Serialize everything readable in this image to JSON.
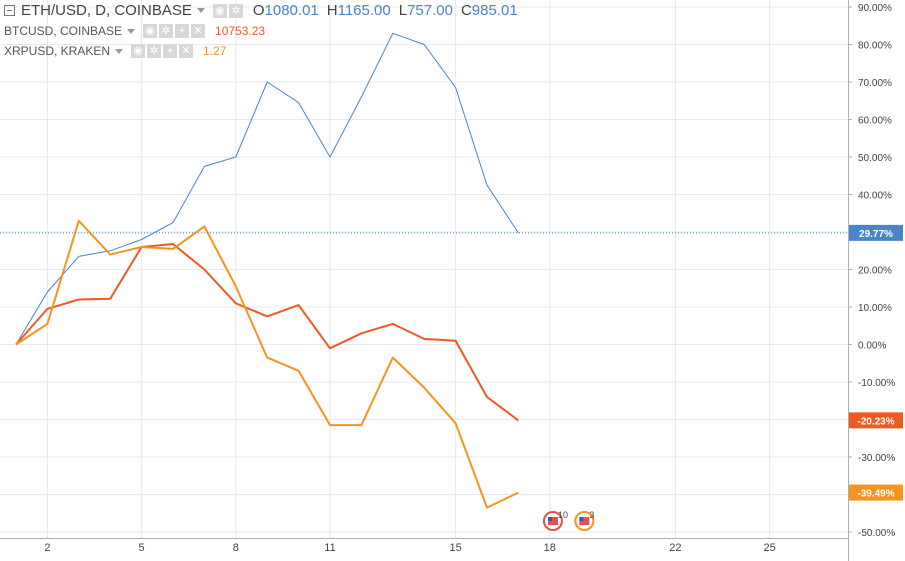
{
  "legend": {
    "main": {
      "symbol": "ETH/USD, D, COINBASE",
      "open_key": "O",
      "open": "1080.01",
      "high_key": "H",
      "high": "1165.00",
      "low_key": "L",
      "low": "757.00",
      "close_key": "C",
      "close": "985.01"
    },
    "compare1": {
      "symbol": "BTCUSD, COINBASE",
      "value": "10753.23",
      "color": "#f05a22"
    },
    "compare2": {
      "symbol": "XRPUSD, KRAKEN",
      "value": "1.27",
      "color": "#f7931e"
    }
  },
  "price_scale": {
    "labels": [
      "90.00%",
      "80.00%",
      "70.00%",
      "60.00%",
      "50.00%",
      "40.00%",
      "30.00%",
      "20.00%",
      "10.00%",
      "0.00%",
      "-10.00%",
      "-20.00%",
      "-30.00%",
      "-40.00%",
      "-50.00%"
    ],
    "values": [
      90,
      80,
      70,
      60,
      50,
      40,
      30,
      20,
      10,
      0,
      -10,
      -20,
      -30,
      -40,
      -50
    ]
  },
  "time_scale": {
    "labels": [
      "2",
      "5",
      "8",
      "11",
      "15",
      "18",
      "22",
      "25"
    ],
    "positions": [
      2,
      5,
      8,
      11,
      15,
      18,
      22,
      25
    ]
  },
  "events": [
    {
      "count": "10",
      "x": 18.1
    },
    {
      "count": "3",
      "x": 19.1
    }
  ],
  "chart_data": {
    "type": "line",
    "ylim": [
      -50,
      90
    ],
    "series": [
      {
        "name": "ETH/USD",
        "color": "#4a84c9",
        "last_label": "29.77%",
        "last": 29.77,
        "x": [
          1,
          2,
          3,
          4,
          5,
          6,
          7,
          8,
          9,
          10,
          11,
          12,
          13,
          14,
          15,
          16,
          17
        ],
        "values": [
          0,
          14,
          23.5,
          25,
          28,
          32.5,
          47.5,
          50,
          70,
          64.5,
          50,
          66,
          83,
          80,
          68.5,
          42.5,
          29.77
        ]
      },
      {
        "name": "BTCUSD",
        "color": "#f05a22",
        "last_label": "-20.23%",
        "last": -20.23,
        "x": [
          1,
          2,
          3,
          4,
          5,
          6,
          7,
          8,
          9,
          10,
          11,
          12,
          13,
          14,
          15,
          16,
          17
        ],
        "values": [
          0,
          9.5,
          12,
          12.2,
          26,
          26.8,
          20,
          11,
          7.5,
          10.5,
          -1,
          3,
          5.5,
          1.5,
          1,
          -14,
          -20.23
        ]
      },
      {
        "name": "XRPUSD",
        "color": "#f7931e",
        "last_label": "-39.49%",
        "last": -39.49,
        "x": [
          1,
          2,
          3,
          4,
          5,
          6,
          7,
          8,
          9,
          10,
          11,
          12,
          13,
          14,
          15,
          16,
          17
        ],
        "values": [
          0,
          5.5,
          33,
          24,
          26,
          25.5,
          31.5,
          15.5,
          -3.5,
          -7,
          -21.5,
          -21.5,
          -3.5,
          -11.5,
          -21,
          -43.5,
          -39.49
        ]
      }
    ]
  }
}
